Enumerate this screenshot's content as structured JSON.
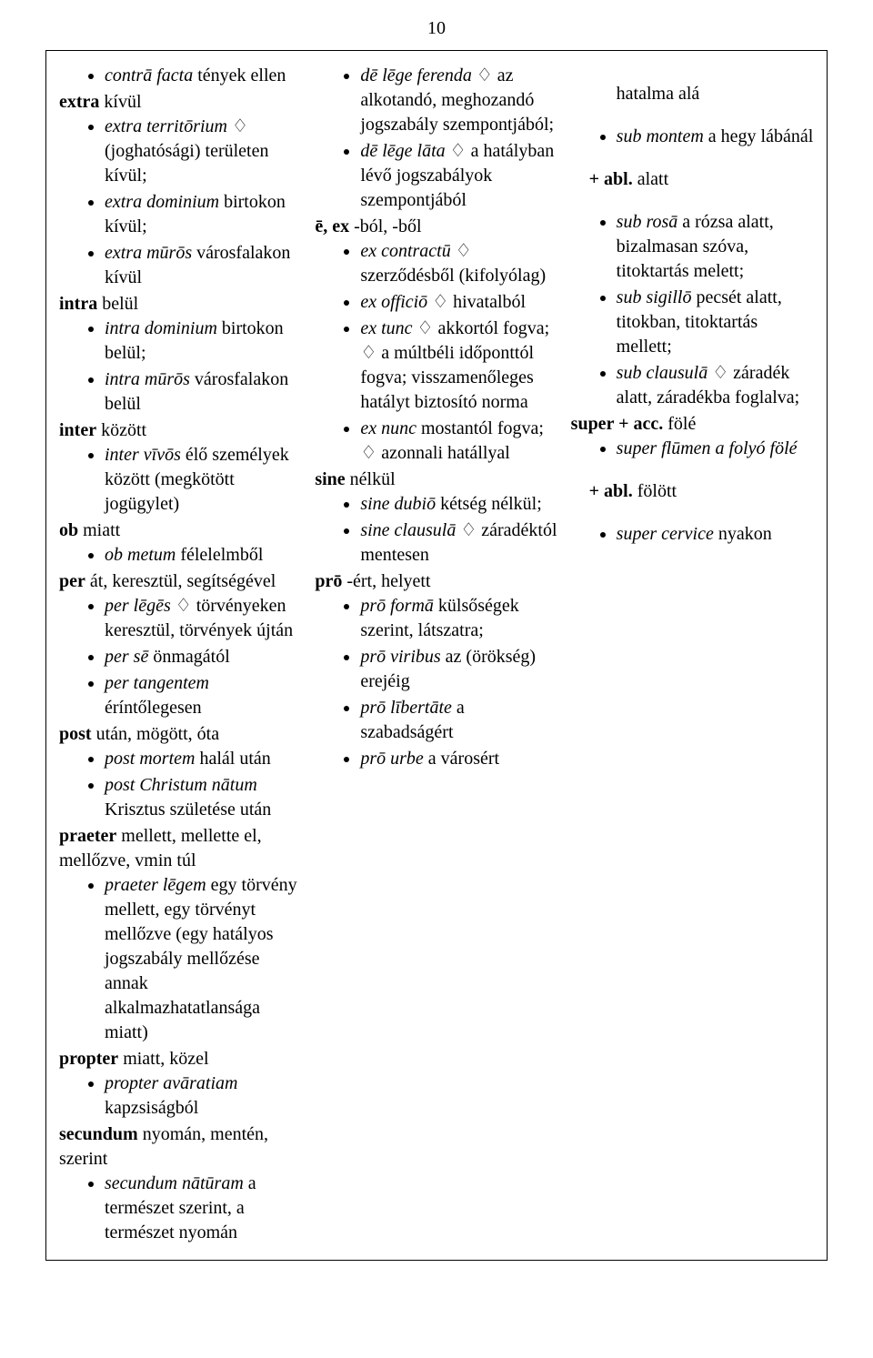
{
  "page_number": "10",
  "col1": {
    "li1": {
      "pre": "contrā facta",
      "post": " tények ellen"
    },
    "h_extra": "extra",
    "h_extra_post": " kívül",
    "extra": [
      {
        "pre": "extra territōrium",
        "post": " ♢ (joghatósági) területen kívül;"
      },
      {
        "pre": "extra dominium",
        "post": " birtokon kívül;"
      },
      {
        "pre": "extra mūrōs",
        "post": " városfalakon kívül"
      }
    ],
    "h_intra": "intra",
    "h_intra_post": " belül",
    "intra": [
      {
        "pre": "intra dominium",
        "post": " birtokon belül;"
      },
      {
        "pre": "intra mūrōs",
        "post": " városfalakon belül"
      }
    ],
    "h_inter": "inter",
    "h_inter_post": " között",
    "inter": [
      {
        "pre": "inter vīvōs",
        "post": " élő személyek között (megkötött jogügylet)"
      }
    ],
    "h_ob": "ob",
    "h_ob_post": " miatt",
    "ob": [
      {
        "pre": "ob metum",
        "post": " félelelmből"
      }
    ],
    "h_per": "per",
    "h_per_post": " át, keresztül, segítségével",
    "per": [
      {
        "pre": "per lēgēs",
        "post": " ♢ törvényeken keresztül, törvények újtán"
      },
      {
        "pre": "per sē",
        "post": " önmagától"
      },
      {
        "pre": "per tangentem",
        "post": " éríntőlegesen"
      }
    ],
    "h_post": "post",
    "h_post_post": " után, mögött, óta",
    "post": [
      {
        "pre": "post mortem",
        "post": " halál után"
      },
      {
        "pre": "post Christum nātum",
        "post": " Krisztus születése után"
      }
    ],
    "h_praeter": "praeter",
    "h_praeter_post": " mellett, mellette el, mellőzve, vmin túl",
    "praeter": [
      {
        "pre": "praeter lēgem",
        "post": " egy törvény mellett, egy törvényt mellőzve (egy hatályos jogszabály mellőzése annak alkalmazhatatlansága miatt)"
      }
    ],
    "h_propter": "propter",
    "h_propter_post": " miatt, közel",
    "propter": [
      {
        "pre": "propter avāratiam",
        "post": " kapzsiságból"
      }
    ],
    "h_secundum": "secundum",
    "h_secundum_post": " nyomán, mentén, szerint",
    "secundum": [
      {
        "pre": "secundum nātūram",
        "post": " a természet szerint, a természet nyomán"
      }
    ]
  },
  "col2": {
    "de": [
      {
        "pre": "dē lēge ferenda",
        "post": " ♢ az alkotandó, meghozandó jogszabály szempontjából;"
      },
      {
        "pre": "dē lēge lāta",
        "mid": " ♢ a hatályban lévő jogszabályok szempontjából"
      }
    ],
    "h_eex": "ē, ex",
    "h_eex_post": " -ból, -ből",
    "eex": [
      {
        "pre": "ex contractū",
        "mid": " ♢ szerződésből (kifolyólag)"
      },
      {
        "pre": "ex officiō",
        "mid": " ♢ hivatalból"
      },
      {
        "pre": "ex tunc",
        "mid": " ♢ akkortól fogva; ♢ a múltbéli időponttól fogva; visszamenőleges hatályt biztosító norma"
      },
      {
        "pre": "ex nunc",
        "mid": " mostantól fogva; ♢ azonnali hatállyal"
      }
    ],
    "h_sine": "sine",
    "h_sine_post": " nélkül",
    "sine": [
      {
        "pre": "sine dubiō",
        "mid": " kétség nélkül;"
      },
      {
        "pre": "sine clausulā",
        "mid": " ♢ záradéktól mentesen"
      }
    ],
    "h_pro": "prō",
    "h_pro_post": " -ért, helyett",
    "pro": [
      {
        "pre": "prō formā",
        "mid": " külsőségek szerint, látszatra;"
      },
      {
        "pre": "prō viribus",
        "mid": " az (örökség) erejéig"
      },
      {
        "pre": "prō lībertāte",
        "mid": " a szabadságért"
      },
      {
        "pre": "prō urbe",
        "post": " a városért"
      }
    ]
  },
  "col3": {
    "first": "hatalma alá",
    "sub": [
      {
        "pre": "sub montem",
        "post": " a hegy lábánál"
      }
    ],
    "plus_abl": "+ abl.",
    "plus_abl_post": " alatt",
    "sub2": [
      {
        "pre": "sub rosā",
        "post": " a rózsa alatt, bizalmasan szóva, titoktartás melett;"
      },
      {
        "pre": "sub sigillō",
        "post": " pecsét alatt, titokban, titoktartás mellett;"
      },
      {
        "pre": "sub clausulā",
        "post": " ♢ záradék alatt, záradékba foglalva;"
      }
    ],
    "h_super": "super + acc.",
    "h_super_post": " fölé",
    "super": [
      {
        "pre": "super flūmen",
        "post": " a folyó fölé"
      }
    ],
    "plus_abl2": "+ abl.",
    "plus_abl2_post": " fölött",
    "super2": [
      {
        "pre": "super cervice",
        "post": " nyakon"
      }
    ]
  }
}
